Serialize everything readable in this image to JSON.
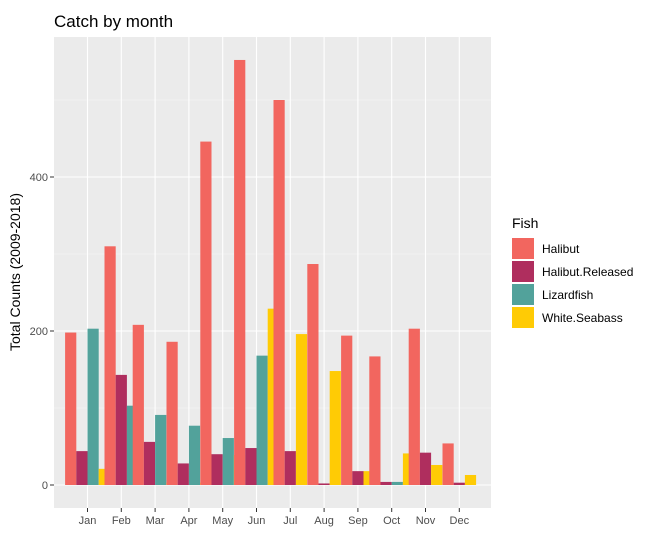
{
  "chart_data": {
    "type": "bar",
    "title": "Catch by month",
    "xlabel": "",
    "ylabel": "Total Counts (2009-2018)",
    "categories": [
      "Jan",
      "Feb",
      "Mar",
      "Apr",
      "May",
      "Jun",
      "Jul",
      "Aug",
      "Sep",
      "Oct",
      "Nov",
      "Dec"
    ],
    "ylim": [
      0,
      570
    ],
    "yticks": [
      0,
      200,
      400
    ],
    "legend_title": "Fish",
    "legend_position": "right",
    "grid": true,
    "series": [
      {
        "name": "Halibut",
        "color": "#F2665F",
        "values": [
          198,
          310,
          208,
          186,
          446,
          552,
          500,
          287,
          194,
          167,
          203,
          54
        ]
      },
      {
        "name": "Halibut.Released",
        "color": "#AF2E5E",
        "values": [
          44,
          143,
          56,
          28,
          40,
          48,
          44,
          2,
          18,
          4,
          42,
          3
        ]
      },
      {
        "name": "Lizardfish",
        "color": "#52A29B",
        "values": [
          203,
          103,
          91,
          77,
          61,
          168,
          0,
          0,
          0,
          4,
          0,
          0
        ]
      },
      {
        "name": "White.Seabass",
        "color": "#FFCB05",
        "values": [
          21,
          0,
          3,
          3,
          39,
          229,
          196,
          148,
          18,
          41,
          26,
          13
        ]
      }
    ]
  }
}
